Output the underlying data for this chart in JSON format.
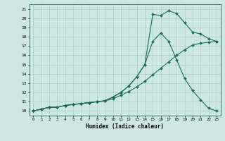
{
  "xlabel": "Humidex (Indice chaleur)",
  "bg_color": "#cde8e2",
  "grid_color": "#a8cfc8",
  "line_color": "#1a6b5a",
  "xlim": [
    -0.5,
    23.5
  ],
  "ylim": [
    9.5,
    21.5
  ],
  "xticks": [
    0,
    1,
    2,
    3,
    4,
    5,
    6,
    7,
    8,
    9,
    10,
    11,
    12,
    13,
    14,
    15,
    16,
    17,
    18,
    19,
    20,
    21,
    22,
    23
  ],
  "yticks": [
    10,
    11,
    12,
    13,
    14,
    15,
    16,
    17,
    18,
    19,
    20,
    21
  ],
  "line1_x": [
    0,
    1,
    2,
    3,
    4,
    5,
    6,
    7,
    8,
    9,
    10,
    11,
    12,
    13,
    14,
    15,
    16,
    17,
    18,
    19,
    20,
    21,
    22,
    23
  ],
  "line1_y": [
    10,
    10.2,
    10.4,
    10.4,
    10.6,
    10.7,
    10.8,
    10.9,
    11.0,
    11.1,
    11.3,
    11.7,
    12.1,
    12.6,
    13.2,
    13.9,
    14.6,
    15.3,
    16.0,
    16.6,
    17.1,
    17.3,
    17.4,
    17.5
  ],
  "line2_x": [
    0,
    1,
    2,
    3,
    4,
    5,
    6,
    7,
    8,
    9,
    10,
    11,
    12,
    13,
    14,
    15,
    16,
    17,
    18,
    19,
    20,
    21,
    22,
    23
  ],
  "line2_y": [
    10,
    10.2,
    10.4,
    10.4,
    10.6,
    10.7,
    10.8,
    10.9,
    11.0,
    11.1,
    11.5,
    12.0,
    12.7,
    13.7,
    15.0,
    17.5,
    18.4,
    17.5,
    15.5,
    13.5,
    12.2,
    11.2,
    10.3,
    10.0
  ],
  "line3_x": [
    0,
    1,
    2,
    3,
    4,
    5,
    6,
    7,
    8,
    9,
    10,
    11,
    12,
    13,
    14,
    15,
    16,
    17,
    18,
    19,
    20,
    21,
    22,
    23
  ],
  "line3_y": [
    10,
    10.2,
    10.4,
    10.4,
    10.6,
    10.7,
    10.8,
    10.9,
    11.0,
    11.1,
    11.5,
    12.0,
    12.7,
    13.7,
    15.0,
    20.4,
    20.3,
    20.8,
    20.5,
    19.5,
    18.5,
    18.3,
    17.8,
    17.5
  ]
}
